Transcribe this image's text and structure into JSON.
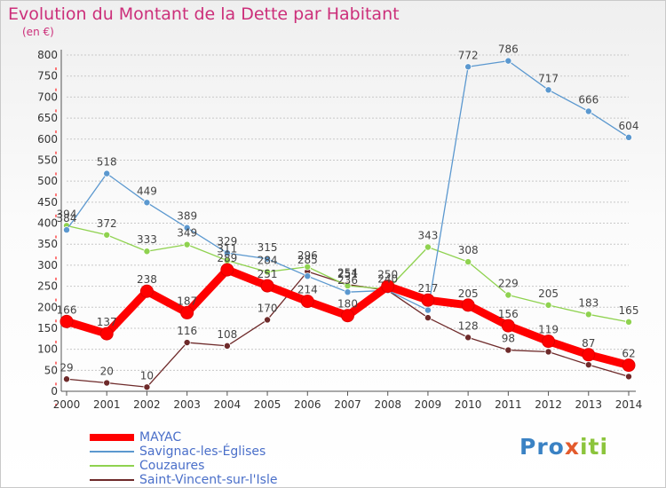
{
  "title": "Evolution du Montant de la Dette par Habitant",
  "unit_label": "(en €)",
  "brand": {
    "part1": "Pro",
    "part2": "x",
    "part3": "iti"
  },
  "chart_data": {
    "type": "line",
    "title": "Evolution du Montant de la Dette par Habitant",
    "ylabel": "(en €)",
    "x": [
      2000,
      2001,
      2002,
      2003,
      2004,
      2005,
      2006,
      2007,
      2008,
      2009,
      2010,
      2011,
      2012,
      2013,
      2014
    ],
    "ylim": [
      0,
      800
    ],
    "yticks": [
      0,
      50,
      100,
      150,
      200,
      250,
      300,
      350,
      400,
      450,
      500,
      550,
      600,
      650,
      700,
      750,
      800
    ],
    "grid": "dashed horizontal gridlines",
    "legend_position": "bottom-left",
    "series": [
      {
        "name": "Saint-Vincent-sur-l'Isle",
        "color": "#6e2a2a",
        "values": [
          29,
          20,
          10,
          116,
          108,
          170,
          285,
          254,
          240,
          175,
          128,
          98,
          94,
          63,
          35
        ],
        "labels": [
          "29",
          "20",
          "10",
          "116",
          "108",
          "170",
          "285",
          "254",
          "",
          "",
          "128",
          "98",
          "",
          "",
          ""
        ]
      },
      {
        "name": "Couzaures",
        "color": "#8fd24f",
        "values": [
          394,
          372,
          333,
          349,
          311,
          284,
          296,
          251,
          243,
          343,
          308,
          229,
          205,
          183,
          165
        ],
        "labels": [
          "394",
          "372",
          "333",
          "349",
          "311",
          "284",
          "296",
          "251",
          "",
          "343",
          "308",
          "229",
          "205",
          "183",
          "165"
        ]
      },
      {
        "name": "Savignac-les-Églises",
        "color": "#5b98cf",
        "values": [
          384,
          518,
          449,
          389,
          329,
          315,
          274,
          236,
          240,
          193,
          772,
          786,
          717,
          666,
          604
        ],
        "labels": [
          "384",
          "518",
          "449",
          "389",
          "329",
          "315",
          "",
          "236",
          "240",
          "",
          "772",
          "786",
          "717",
          "666",
          "604"
        ]
      },
      {
        "name": "MAYAC",
        "color": "#ff0000",
        "values": [
          166,
          137,
          238,
          187,
          289,
          251,
          214,
          180,
          250,
          217,
          205,
          156,
          119,
          87,
          62
        ],
        "labels": [
          "166",
          "137",
          "238",
          "187",
          "289",
          "251",
          "214",
          "180",
          "250",
          "217",
          "205",
          "156",
          "119",
          "87",
          "62"
        ]
      }
    ],
    "legend": [
      "MAYAC",
      "Savignac-les-Églises",
      "Couzaures",
      "Saint-Vincent-sur-l'Isle"
    ]
  }
}
